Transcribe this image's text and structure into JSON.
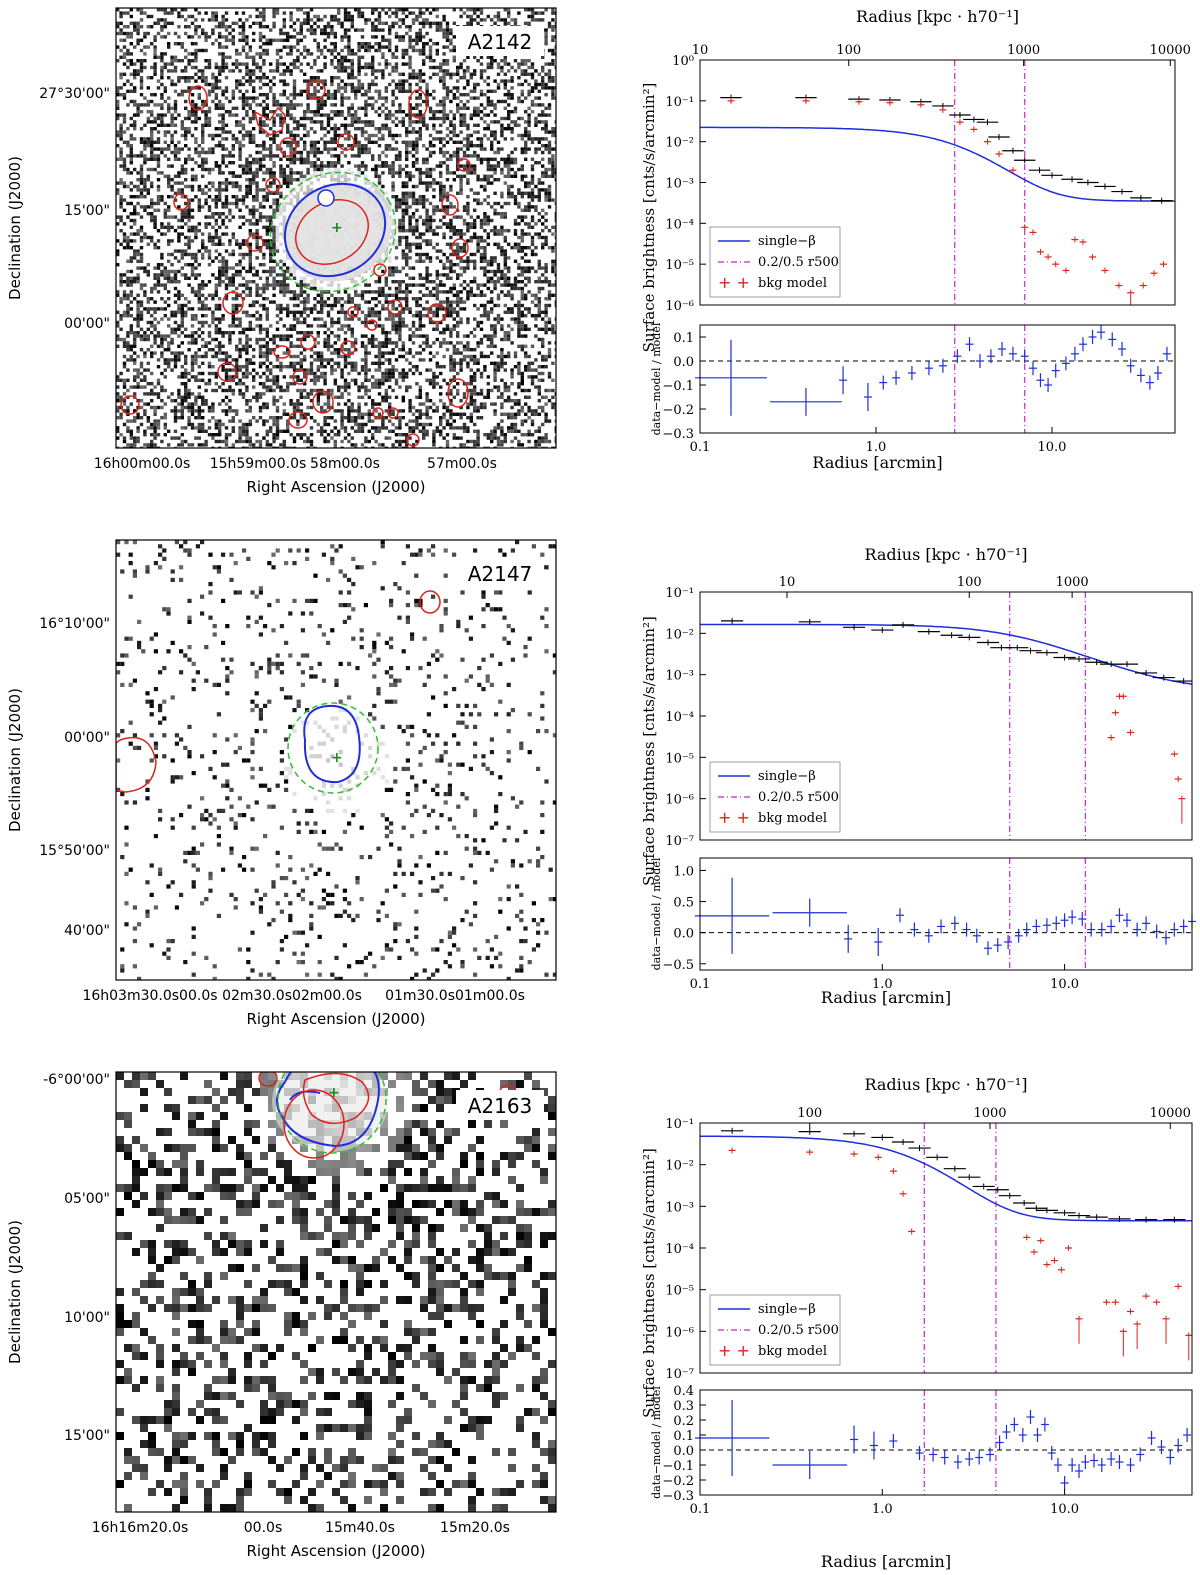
{
  "chart_data": [
    {
      "type": "image",
      "cluster": "A2142",
      "ylabel": "Declination (J2000)",
      "xlabel": "Right Ascension (J2000)",
      "y_ticks": [
        "27°30'00\"",
        "15'00\"",
        "00'00\""
      ],
      "x_ticks": [
        "16h00m00.0s",
        "15h59m00.0s",
        "58m00.0s",
        "57m00.0s"
      ],
      "noise": 0.62
    },
    {
      "type": "line",
      "cluster": "A2142",
      "ylabel": "Surface brightness [cnts/s/arcmin²]",
      "top_label": "Radius [kpc · h70⁻¹]",
      "top_ticks": [
        "10",
        "100",
        "1000",
        "10000"
      ],
      "top_tick_arcmin": [
        0.1,
        0.7,
        6.9,
        47
      ],
      "xlabel": "Radius [arcmin]",
      "x_ticks": [
        "0.1",
        "1.0",
        "10.0"
      ],
      "xlim": [
        0.1,
        50
      ],
      "ylim": [
        1e-06,
        1
      ],
      "y_ticks": [
        "10⁻⁶",
        "10⁻⁵",
        "10⁻⁴",
        "10⁻³",
        "10⁻²",
        "10⁻¹",
        "10⁰"
      ],
      "vlines": [
        2.8,
        7.0
      ],
      "model": {
        "name": "single−β",
        "s0": 0.022,
        "rc": 3.5,
        "beta": 0.85,
        "bkg": 0.00035
      },
      "data": [
        [
          0.15,
          0.12
        ],
        [
          0.4,
          0.12
        ],
        [
          0.8,
          0.11
        ],
        [
          1.2,
          0.105
        ],
        [
          1.8,
          0.095
        ],
        [
          2.4,
          0.075
        ],
        [
          3.0,
          0.045
        ],
        [
          3.6,
          0.035
        ],
        [
          4.3,
          0.03
        ],
        [
          5,
          0.013
        ],
        [
          6,
          0.006
        ],
        [
          7,
          0.0035
        ],
        [
          8.5,
          0.002
        ],
        [
          10,
          0.0015
        ],
        [
          13,
          0.0012
        ],
        [
          16,
          0.001
        ],
        [
          20,
          0.0008
        ],
        [
          25,
          0.0006
        ],
        [
          32,
          0.00042
        ],
        [
          42,
          0.00036
        ]
      ],
      "bkg_points": [
        [
          0.15,
          0.1
        ],
        [
          0.4,
          0.1
        ],
        [
          0.8,
          0.095
        ],
        [
          1.2,
          0.09
        ],
        [
          1.8,
          0.08
        ],
        [
          2.4,
          0.06
        ],
        [
          3.0,
          0.03
        ],
        [
          3.6,
          0.02
        ],
        [
          4.3,
          0.01
        ],
        [
          5,
          0.005
        ],
        [
          6,
          0.002
        ],
        [
          7,
          8e-05
        ],
        [
          7.8,
          6e-05
        ],
        [
          8.6,
          2e-05
        ],
        [
          9.5,
          1.5e-05
        ],
        [
          10.5,
          1e-05
        ],
        [
          12,
          7e-06
        ],
        [
          13.5,
          4e-05
        ],
        [
          15,
          3.5e-05
        ],
        [
          17,
          1.5e-05
        ],
        [
          20,
          7e-06
        ],
        [
          24,
          3e-06
        ],
        [
          28,
          2e-06
        ],
        [
          33,
          3e-06
        ],
        [
          38,
          6e-06
        ],
        [
          43,
          1e-05
        ]
      ],
      "residual": {
        "ylim": [
          -0.3,
          0.15
        ],
        "y_ticks": [
          "0.1",
          "0.0",
          "−0.1",
          "−0.2",
          "−0.3"
        ],
        "ylabel": "data−model / model",
        "points": [
          [
            0.15,
            -0.07
          ],
          [
            0.4,
            -0.17
          ],
          [
            0.65,
            -0.08
          ],
          [
            0.9,
            -0.15
          ],
          [
            1.1,
            -0.09
          ],
          [
            1.3,
            -0.07
          ],
          [
            1.6,
            -0.05
          ],
          [
            2,
            -0.03
          ],
          [
            2.4,
            -0.02
          ],
          [
            2.9,
            0.02
          ],
          [
            3.4,
            0.07
          ],
          [
            3.9,
            0.0
          ],
          [
            4.5,
            0.02
          ],
          [
            5.2,
            0.05
          ],
          [
            6.0,
            0.03
          ],
          [
            7,
            0.02
          ],
          [
            7.8,
            -0.03
          ],
          [
            8.6,
            -0.08
          ],
          [
            9.5,
            -0.1
          ],
          [
            10.5,
            -0.04
          ],
          [
            12,
            -0.01
          ],
          [
            13.5,
            0.03
          ],
          [
            15,
            0.07
          ],
          [
            17,
            0.1
          ],
          [
            19,
            0.12
          ],
          [
            22,
            0.09
          ],
          [
            25,
            0.05
          ],
          [
            28,
            -0.02
          ],
          [
            32,
            -0.06
          ],
          [
            36,
            -0.09
          ],
          [
            40,
            -0.05
          ],
          [
            45,
            0.03
          ]
        ]
      },
      "legend": [
        "single−β",
        "0.2/0.5 r500",
        "bkg model"
      ]
    },
    {
      "type": "image",
      "cluster": "A2147",
      "ylabel": "Declination (J2000)",
      "xlabel": "Right Ascension (J2000)",
      "y_ticks": [
        "16°10'00\"",
        "00'00\"",
        "15°50'00\"",
        "40'00\""
      ],
      "x_ticks": [
        "16h03m30.0s00.0s",
        "02m30.0s02m00.0s",
        "01m30.0s01m00.0s"
      ],
      "noise": 0.12
    },
    {
      "type": "line",
      "cluster": "A2147",
      "ylabel": "Surface brightness [cnts/s/arcmin²]",
      "top_label": "Radius [kpc · h70⁻¹]",
      "top_ticks": [
        "10",
        "100",
        "1000"
      ],
      "top_tick_arcmin": [
        0.3,
        3.0,
        11
      ],
      "xlabel": "Radius [arcmin]",
      "x_ticks": [
        "0.1",
        "1.0",
        "10.0"
      ],
      "xlim": [
        0.1,
        50
      ],
      "ylim": [
        1e-07,
        0.1
      ],
      "y_ticks": [
        "10⁻⁷",
        "10⁻⁶",
        "10⁻⁵",
        "10⁻⁴",
        "10⁻³",
        "10⁻²",
        "10⁻¹"
      ],
      "vlines": [
        5.0,
        13.0
      ],
      "model": {
        "name": "single−β",
        "s0": 0.016,
        "rc": 5.5,
        "beta": 0.5,
        "bkg": 0.0004
      },
      "data": [
        [
          0.15,
          0.02
        ],
        [
          0.4,
          0.019
        ],
        [
          0.7,
          0.014
        ],
        [
          1.0,
          0.012
        ],
        [
          1.3,
          0.016
        ],
        [
          1.8,
          0.011
        ],
        [
          2.4,
          0.009
        ],
        [
          3.0,
          0.008
        ],
        [
          3.8,
          0.006
        ],
        [
          4.5,
          0.0045
        ],
        [
          5.5,
          0.0045
        ],
        [
          6.5,
          0.0038
        ],
        [
          8,
          0.0034
        ],
        [
          10,
          0.0026
        ],
        [
          12,
          0.0024
        ],
        [
          15,
          0.002
        ],
        [
          18,
          0.0018
        ],
        [
          22,
          0.0018
        ],
        [
          28,
          0.0011
        ],
        [
          35,
          0.00085
        ],
        [
          45,
          0.0007
        ]
      ],
      "bkg_points": [
        [
          18,
          3e-05
        ],
        [
          19,
          0.00012
        ],
        [
          20,
          0.0003
        ],
        [
          21,
          0.0003
        ],
        [
          23,
          4e-05
        ],
        [
          40,
          1.2e-05
        ],
        [
          42,
          3e-06
        ],
        [
          44,
          1e-06
        ]
      ],
      "residual": {
        "ylim": [
          -0.6,
          1.2
        ],
        "y_ticks": [
          "1.0",
          "0.5",
          "0.0",
          "−0.5"
        ],
        "ylabel": "data−model / model",
        "points": [
          [
            0.15,
            0.27
          ],
          [
            0.4,
            0.32
          ],
          [
            0.65,
            -0.1
          ],
          [
            0.95,
            -0.15
          ],
          [
            1.25,
            0.28
          ],
          [
            1.5,
            0.05
          ],
          [
            1.8,
            -0.05
          ],
          [
            2.1,
            0.1
          ],
          [
            2.5,
            0.15
          ],
          [
            2.9,
            0.05
          ],
          [
            3.3,
            -0.05
          ],
          [
            3.8,
            -0.25
          ],
          [
            4.3,
            -0.2
          ],
          [
            4.9,
            -0.15
          ],
          [
            5.6,
            -0.05
          ],
          [
            6.2,
            0.05
          ],
          [
            7,
            0.1
          ],
          [
            8,
            0.12
          ],
          [
            9,
            0.15
          ],
          [
            10,
            0.2
          ],
          [
            11,
            0.25
          ],
          [
            12.5,
            0.22
          ],
          [
            14,
            0.05
          ],
          [
            16,
            0.05
          ],
          [
            18,
            0.1
          ],
          [
            20,
            0.28
          ],
          [
            22,
            0.2
          ],
          [
            25,
            0.05
          ],
          [
            28,
            0.15
          ],
          [
            32,
            0.02
          ],
          [
            36,
            -0.08
          ],
          [
            40,
            0.05
          ],
          [
            45,
            0.1
          ],
          [
            50,
            0.18
          ]
        ]
      },
      "legend": [
        "single−β",
        "0.2/0.5 r500",
        "bkg model"
      ]
    },
    {
      "type": "image",
      "cluster": "A2163",
      "ylabel": "Declination (J2000)",
      "xlabel": "Right Ascension (J2000)",
      "y_ticks": [
        "-6°00'00\"",
        "05'00\"",
        "10'00\"",
        "15'00\""
      ],
      "x_ticks": [
        "16h16m20.0s",
        "00.0s",
        "15m40.0s",
        "15m20.0s"
      ],
      "noise": 0.55
    },
    {
      "type": "line",
      "cluster": "A2163",
      "ylabel": "Surface brightness [cnts/s/arcmin²]",
      "top_label": "Radius [kpc · h70⁻¹]",
      "top_ticks": [
        "100",
        "1000",
        "10000"
      ],
      "top_tick_arcmin": [
        0.4,
        3.9,
        38
      ],
      "xlabel": "Radius [arcmin]",
      "x_ticks": [
        "0.1",
        "1.0",
        "10.0"
      ],
      "xlim": [
        0.1,
        50
      ],
      "ylim": [
        1e-07,
        0.1
      ],
      "y_ticks": [
        "10⁻⁷",
        "10⁻⁶",
        "10⁻⁵",
        "10⁻⁴",
        "10⁻³",
        "10⁻²",
        "10⁻¹"
      ],
      "vlines": [
        1.7,
        4.2
      ],
      "model": {
        "name": "single−β",
        "s0": 0.048,
        "rc": 1.6,
        "beta": 0.85,
        "bkg": 0.00045
      },
      "data": [
        [
          0.15,
          0.065
        ],
        [
          0.4,
          0.062
        ],
        [
          0.7,
          0.055
        ],
        [
          1.0,
          0.045
        ],
        [
          1.3,
          0.035
        ],
        [
          1.6,
          0.025
        ],
        [
          2.0,
          0.015
        ],
        [
          2.5,
          0.008
        ],
        [
          3.0,
          0.005
        ],
        [
          3.6,
          0.003
        ],
        [
          4.3,
          0.0025
        ],
        [
          5,
          0.0018
        ],
        [
          6,
          0.0012
        ],
        [
          7,
          0.0009
        ],
        [
          8,
          0.0008
        ],
        [
          10,
          0.0007
        ],
        [
          12,
          0.0006
        ],
        [
          15,
          0.00055
        ],
        [
          20,
          0.0005
        ],
        [
          28,
          0.00048
        ],
        [
          40,
          0.00048
        ]
      ],
      "bkg_points": [
        [
          0.15,
          0.022
        ],
        [
          0.4,
          0.02
        ],
        [
          0.7,
          0.018
        ],
        [
          0.95,
          0.015
        ],
        [
          1.15,
          0.007
        ],
        [
          1.3,
          0.002
        ],
        [
          1.45,
          0.00025
        ],
        [
          6.2,
          0.00018
        ],
        [
          6.8,
          8e-05
        ],
        [
          7.4,
          0.00015
        ],
        [
          8,
          4e-05
        ],
        [
          8.8,
          5e-05
        ],
        [
          9.6,
          3e-05
        ],
        [
          10.5,
          0.0001
        ],
        [
          12,
          2e-06
        ],
        [
          17,
          5e-06
        ],
        [
          19,
          5e-06
        ],
        [
          21,
          1e-06
        ],
        [
          23,
          3e-06
        ],
        [
          25,
          1.5e-06
        ],
        [
          28,
          7e-06
        ],
        [
          32,
          5e-06
        ],
        [
          36,
          2e-06
        ],
        [
          42,
          1.2e-05
        ],
        [
          48,
          8e-07
        ]
      ],
      "residual": {
        "ylim": [
          -0.3,
          0.4
        ],
        "y_ticks": [
          "0.4",
          "0.3",
          "0.2",
          "0.1",
          "0.0",
          "−0.1",
          "−0.2",
          "−0.3"
        ],
        "ylabel": "data−model / model",
        "points": [
          [
            0.15,
            0.08
          ],
          [
            0.4,
            -0.1
          ],
          [
            0.7,
            0.07
          ],
          [
            0.9,
            0.03
          ],
          [
            1.15,
            0.06
          ],
          [
            1.6,
            -0.02
          ],
          [
            1.9,
            -0.03
          ],
          [
            2.2,
            -0.05
          ],
          [
            2.6,
            -0.08
          ],
          [
            3.0,
            -0.06
          ],
          [
            3.4,
            -0.05
          ],
          [
            3.9,
            -0.03
          ],
          [
            4.4,
            0.05
          ],
          [
            4.8,
            0.12
          ],
          [
            5.3,
            0.17
          ],
          [
            5.9,
            0.1
          ],
          [
            6.5,
            0.22
          ],
          [
            7.1,
            0.1
          ],
          [
            7.8,
            0.17
          ],
          [
            8.5,
            -0.02
          ],
          [
            9.2,
            -0.1
          ],
          [
            10,
            -0.22
          ],
          [
            11,
            -0.1
          ],
          [
            12,
            -0.14
          ],
          [
            13,
            -0.08
          ],
          [
            14.5,
            -0.07
          ],
          [
            16,
            -0.1
          ],
          [
            18,
            -0.06
          ],
          [
            20,
            -0.08
          ],
          [
            23,
            -0.1
          ],
          [
            26,
            -0.03
          ],
          [
            30,
            0.08
          ],
          [
            34,
            0.02
          ],
          [
            38,
            -0.05
          ],
          [
            42,
            0.03
          ],
          [
            47,
            0.1
          ]
        ]
      },
      "legend": [
        "single−β",
        "0.2/0.5 r500",
        "bkg model"
      ]
    }
  ]
}
